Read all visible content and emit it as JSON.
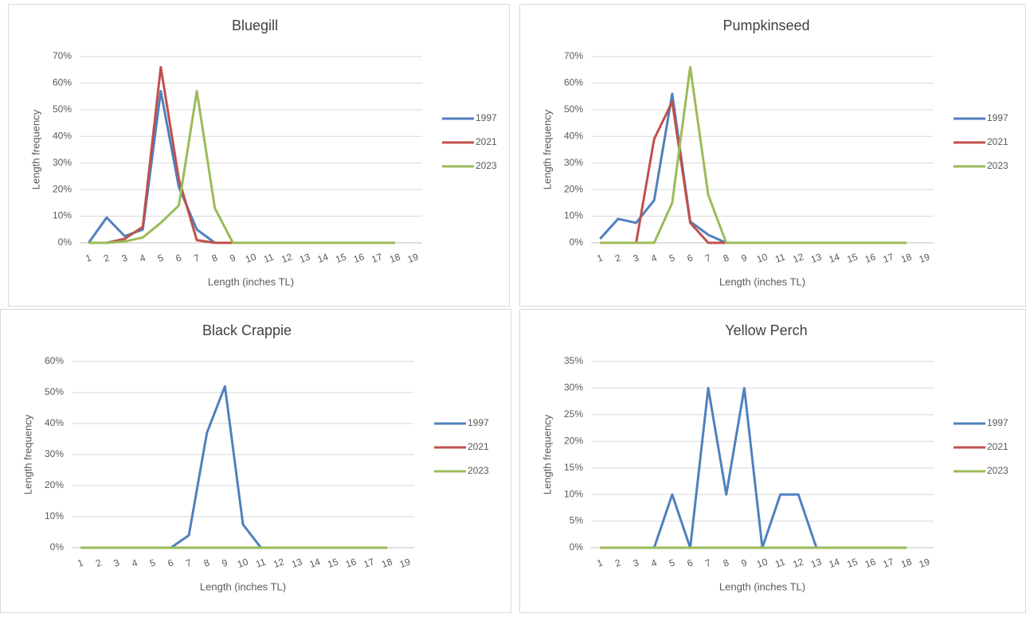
{
  "chart_data": [
    {
      "type": "line",
      "title": "Bluegill",
      "x_label": "Length (inches TL)",
      "y_label": "Length frequency",
      "categories": [
        "1",
        "2",
        "3",
        "4",
        "5",
        "6",
        "7",
        "8",
        "9",
        "10",
        "11",
        "12",
        "13",
        "14",
        "15",
        "16",
        "17",
        "18",
        "19"
      ],
      "series": [
        {
          "name": "1997",
          "color": "#4f81bd",
          "values": [
            0,
            9.5,
            2.5,
            5,
            57,
            21,
            5,
            0,
            0,
            0,
            0,
            0,
            0,
            0,
            0,
            0,
            0,
            0,
            null
          ]
        },
        {
          "name": "2021",
          "color": "#c0504d",
          "values": [
            0,
            0,
            1.5,
            6,
            66,
            24,
            1,
            0,
            0,
            0,
            0,
            0,
            0,
            0,
            0,
            0,
            0,
            0,
            null
          ]
        },
        {
          "name": "2023",
          "color": "#9bbb59",
          "values": [
            0,
            0,
            0.5,
            2,
            7.5,
            14,
            57,
            13,
            0,
            0,
            0,
            0,
            0,
            0,
            0,
            0,
            0,
            0,
            null
          ]
        }
      ],
      "ylim": [
        0,
        70
      ],
      "yticks": [
        {
          "value": 0,
          "label": "0%"
        },
        {
          "value": 10,
          "label": "10%"
        },
        {
          "value": 20,
          "label": "20%"
        },
        {
          "value": 30,
          "label": "30%"
        },
        {
          "value": 40,
          "label": "40%"
        },
        {
          "value": 50,
          "label": "50%"
        },
        {
          "value": 60,
          "label": "60%"
        },
        {
          "value": 70,
          "label": "70%"
        }
      ],
      "grid": true,
      "legend": "right"
    },
    {
      "type": "line",
      "title": "Pumpkinseed",
      "x_label": "Length (inches TL)",
      "y_label": "Length frequency",
      "categories": [
        "1",
        "2",
        "3",
        "4",
        "5",
        "6",
        "7",
        "8",
        "9",
        "10",
        "11",
        "12",
        "13",
        "14",
        "15",
        "16",
        "17",
        "18",
        "19"
      ],
      "series": [
        {
          "name": "1997",
          "color": "#4f81bd",
          "values": [
            1.5,
            9,
            7.5,
            16,
            56,
            8,
            3,
            0,
            0,
            0,
            0,
            0,
            0,
            0,
            0,
            0,
            0,
            0,
            null
          ]
        },
        {
          "name": "2021",
          "color": "#c0504d",
          "values": [
            0,
            0,
            0,
            39,
            53,
            7.5,
            0,
            0,
            0,
            0,
            0,
            0,
            0,
            0,
            0,
            0,
            0,
            0,
            null
          ]
        },
        {
          "name": "2023",
          "color": "#9bbb59",
          "values": [
            0,
            0,
            0,
            0,
            15,
            66,
            18,
            0,
            0,
            0,
            0,
            0,
            0,
            0,
            0,
            0,
            0,
            0,
            null
          ]
        }
      ],
      "ylim": [
        0,
        70
      ],
      "yticks": [
        {
          "value": 0,
          "label": "0%"
        },
        {
          "value": 10,
          "label": "10%"
        },
        {
          "value": 20,
          "label": "20%"
        },
        {
          "value": 30,
          "label": "30%"
        },
        {
          "value": 40,
          "label": "40%"
        },
        {
          "value": 50,
          "label": "50%"
        },
        {
          "value": 60,
          "label": "60%"
        },
        {
          "value": 70,
          "label": "70%"
        }
      ],
      "grid": true,
      "legend": "right"
    },
    {
      "type": "line",
      "title": "Black Crappie",
      "x_label": "Length (inches TL)",
      "y_label": "Length frequency",
      "categories": [
        "1",
        "2",
        "3",
        "4",
        "5",
        "6",
        "7",
        "8",
        "9",
        "10",
        "11",
        "12",
        "13",
        "14",
        "15",
        "16",
        "17",
        "18",
        "19"
      ],
      "series": [
        {
          "name": "1997",
          "color": "#4f81bd",
          "values": [
            0,
            0,
            0,
            0,
            0,
            0,
            4,
            37,
            52,
            7.5,
            0,
            0,
            0,
            0,
            0,
            0,
            0,
            0,
            null
          ]
        },
        {
          "name": "2021",
          "color": "#c0504d",
          "values": [
            0,
            0,
            0,
            0,
            0,
            0,
            0,
            0,
            0,
            0,
            0,
            0,
            0,
            0,
            0,
            0,
            0,
            0,
            null
          ]
        },
        {
          "name": "2023",
          "color": "#9bbb59",
          "values": [
            0,
            0,
            0,
            0,
            0,
            0,
            0,
            0,
            0,
            0,
            0,
            0,
            0,
            0,
            0,
            0,
            0,
            0,
            null
          ]
        }
      ],
      "ylim": [
        0,
        60
      ],
      "yticks": [
        {
          "value": 0,
          "label": "0%"
        },
        {
          "value": 10,
          "label": "10%"
        },
        {
          "value": 20,
          "label": "20%"
        },
        {
          "value": 30,
          "label": "30%"
        },
        {
          "value": 40,
          "label": "40%"
        },
        {
          "value": 50,
          "label": "50%"
        },
        {
          "value": 60,
          "label": "60%"
        }
      ],
      "grid": true,
      "legend": "right"
    },
    {
      "type": "line",
      "title": "Yellow Perch",
      "x_label": "Length (inches TL)",
      "y_label": "Length frequency",
      "categories": [
        "1",
        "2",
        "3",
        "4",
        "5",
        "6",
        "7",
        "8",
        "9",
        "10",
        "11",
        "12",
        "13",
        "14",
        "15",
        "16",
        "17",
        "18",
        "19"
      ],
      "series": [
        {
          "name": "1997",
          "color": "#4f81bd",
          "values": [
            0,
            0,
            0,
            0,
            10,
            0,
            30,
            10,
            30,
            0,
            10,
            10,
            0,
            0,
            0,
            0,
            0,
            0,
            null
          ]
        },
        {
          "name": "2021",
          "color": "#c0504d",
          "values": [
            0,
            0,
            0,
            0,
            0,
            0,
            0,
            0,
            0,
            0,
            0,
            0,
            0,
            0,
            0,
            0,
            0,
            0,
            null
          ]
        },
        {
          "name": "2023",
          "color": "#9bbb59",
          "values": [
            0,
            0,
            0,
            0,
            0,
            0,
            0,
            0,
            0,
            0,
            0,
            0,
            0,
            0,
            0,
            0,
            0,
            0,
            null
          ]
        }
      ],
      "ylim": [
        0,
        35
      ],
      "yticks": [
        {
          "value": 0,
          "label": "0%"
        },
        {
          "value": 5,
          "label": "5%"
        },
        {
          "value": 10,
          "label": "10%"
        },
        {
          "value": 15,
          "label": "15%"
        },
        {
          "value": 20,
          "label": "20%"
        },
        {
          "value": 25,
          "label": "25%"
        },
        {
          "value": 30,
          "label": "30%"
        },
        {
          "value": 35,
          "label": "35%"
        }
      ],
      "grid": true,
      "legend": "right"
    }
  ]
}
